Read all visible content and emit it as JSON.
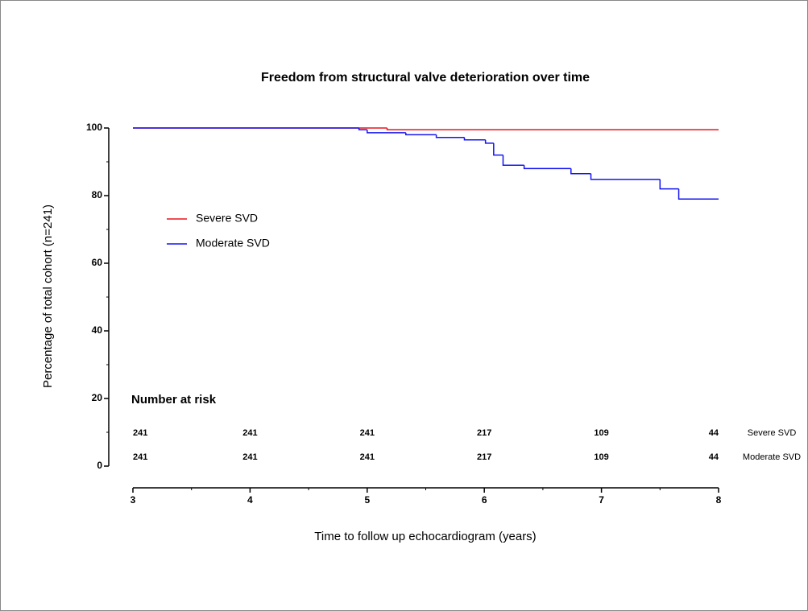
{
  "chart_data": {
    "type": "step",
    "title": "Freedom from structural valve deterioration over time",
    "xlabel": "Time to follow up echocardiogram (years)",
    "ylabel": "Percentage of total cohort (n=241)",
    "xlim": [
      3,
      8
    ],
    "xticks": [
      3,
      4,
      5,
      6,
      7,
      8
    ],
    "ylim": [
      0,
      100
    ],
    "yticks": [
      0,
      20,
      40,
      60,
      80,
      100
    ],
    "series": [
      {
        "name": "Severe SVD",
        "color": "#e8141c",
        "x": [
          3,
          5.17,
          8
        ],
        "values": [
          100,
          99.5,
          99.5
        ]
      },
      {
        "name": "Moderate SVD",
        "color": "#1414f0",
        "x": [
          3,
          4.93,
          5.0,
          5.33,
          5.59,
          5.83,
          6.01,
          6.08,
          6.16,
          6.34,
          6.74,
          6.91,
          7.5,
          7.66,
          8
        ],
        "values": [
          100,
          99.5,
          98.6,
          98,
          97.2,
          96.5,
          95.5,
          92,
          89,
          88,
          86.5,
          84.8,
          82,
          79,
          79
        ]
      }
    ],
    "risk_table": {
      "title": "Number at risk",
      "rows": [
        {
          "name": "Severe SVD",
          "counts": [
            241,
            241,
            241,
            217,
            109,
            44
          ]
        },
        {
          "name": "Moderate SVD",
          "counts": [
            241,
            241,
            241,
            217,
            109,
            44
          ]
        }
      ]
    }
  }
}
